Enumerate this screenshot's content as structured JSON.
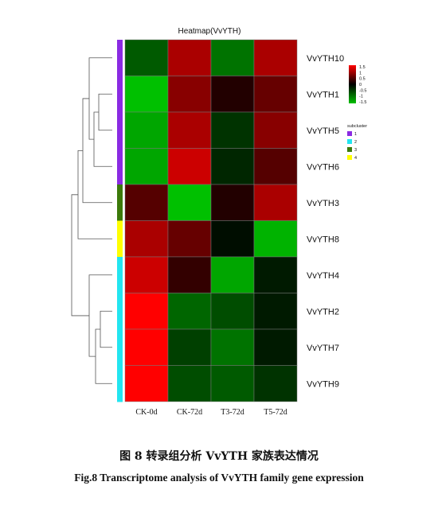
{
  "chart_data": {
    "type": "heatmap",
    "title": "Heatmap(VvYTH)",
    "columns": [
      "CK-0d",
      "CK-72d",
      "T3-72d",
      "T5-72d"
    ],
    "rows": [
      "VvYTH10",
      "VvYTH1",
      "VvYTH5",
      "VvYTH6",
      "VvYTH3",
      "VvYTH8",
      "VvYTH4",
      "VvYTH2",
      "VvYTH7",
      "VvYTH9"
    ],
    "values": [
      [
        -0.7,
        1.0,
        -0.9,
        1.0
      ],
      [
        -1.5,
        0.8,
        0.2,
        0.6
      ],
      [
        -1.3,
        1.0,
        -0.4,
        0.8
      ],
      [
        -1.3,
        1.2,
        -0.3,
        0.5
      ],
      [
        0.5,
        -1.5,
        0.2,
        1.0
      ],
      [
        1.0,
        0.6,
        -0.1,
        -1.4
      ],
      [
        1.2,
        0.3,
        -1.3,
        -0.2
      ],
      [
        1.5,
        -0.8,
        -0.6,
        -0.2
      ],
      [
        1.5,
        -0.5,
        -0.9,
        -0.2
      ],
      [
        1.5,
        -0.6,
        -0.7,
        -0.4
      ]
    ],
    "colorbar": {
      "range": [
        -1.5,
        1.5
      ],
      "ticks": [
        "1.5",
        "1",
        "0.5",
        "0",
        "-0.5",
        "-1",
        "-1.5"
      ],
      "low_color": "#00c000",
      "mid_color": "#000000",
      "high_color": "#ff0000"
    },
    "subcluster": {
      "title": "subcluster",
      "legend": [
        {
          "label": "1",
          "color": "#8a2be2"
        },
        {
          "label": "2",
          "color": "#22e5f0"
        },
        {
          "label": "3",
          "color": "#3c7a0a"
        },
        {
          "label": "4",
          "color": "#ffff00"
        }
      ],
      "row_assignment": [
        "1",
        "1",
        "1",
        "1",
        "3",
        "4",
        "2",
        "2",
        "2",
        "2"
      ]
    },
    "dendrogram_merges": [
      [
        1,
        2
      ],
      [
        10,
        3
      ],
      [
        11,
        0
      ],
      [
        7,
        8
      ],
      [
        13,
        9
      ],
      [
        14,
        6
      ],
      [
        12,
        4
      ],
      [
        16,
        5
      ],
      [
        17,
        15
      ]
    ]
  },
  "caption": {
    "cn": "图 8 转录组分析 VvYTH 家族表达情况",
    "en": "Fig.8 Transcriptome analysis of VvYTH family gene expression"
  }
}
